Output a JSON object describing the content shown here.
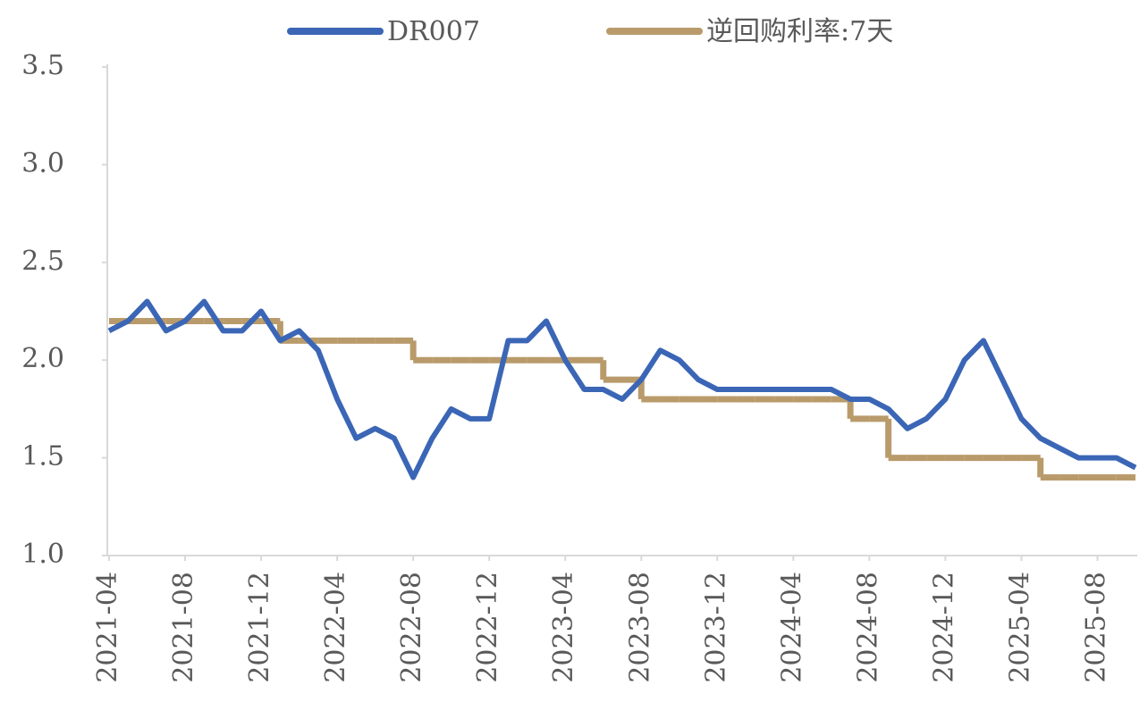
{
  "chart_data": {
    "type": "line",
    "x": [
      "2021-04",
      "2021-05",
      "2021-06",
      "2021-07",
      "2021-08",
      "2021-09",
      "2021-10",
      "2021-11",
      "2021-12",
      "2022-01",
      "2022-02",
      "2022-03",
      "2022-04",
      "2022-05",
      "2022-06",
      "2022-07",
      "2022-08",
      "2022-09",
      "2022-10",
      "2022-11",
      "2022-12",
      "2023-01",
      "2023-02",
      "2023-03",
      "2023-04",
      "2023-05",
      "2023-06",
      "2023-07",
      "2023-08",
      "2023-09",
      "2023-10",
      "2023-11",
      "2023-12",
      "2024-01",
      "2024-02",
      "2024-03",
      "2024-04",
      "2024-05",
      "2024-06",
      "2024-07",
      "2024-08",
      "2024-09",
      "2024-10",
      "2024-11",
      "2024-12",
      "2025-01",
      "2025-02",
      "2025-03",
      "2025-04",
      "2025-05",
      "2025-06",
      "2025-07",
      "2025-08",
      "2025-09",
      "2025-10"
    ],
    "series": [
      {
        "name": "DR007",
        "color": "#3b66b6",
        "values": [
          2.15,
          2.2,
          2.3,
          2.15,
          2.2,
          2.3,
          2.15,
          2.15,
          2.25,
          2.1,
          2.15,
          2.05,
          1.8,
          1.6,
          1.65,
          1.6,
          1.4,
          1.6,
          1.75,
          1.7,
          1.7,
          2.1,
          2.1,
          2.2,
          2.0,
          1.85,
          1.85,
          1.8,
          1.9,
          2.05,
          2.0,
          1.9,
          1.85,
          1.85,
          1.85,
          1.85,
          1.85,
          1.85,
          1.85,
          1.8,
          1.8,
          1.75,
          1.65,
          1.7,
          1.8,
          2.0,
          2.1,
          1.9,
          1.7,
          1.6,
          1.55,
          1.5,
          1.5,
          1.5,
          1.45
        ]
      },
      {
        "name": "逆回购利率:7天",
        "color": "#b99b6b",
        "values": [
          2.2,
          2.2,
          2.2,
          2.2,
          2.2,
          2.2,
          2.2,
          2.2,
          2.2,
          2.1,
          2.1,
          2.1,
          2.1,
          2.1,
          2.1,
          2.1,
          2.0,
          2.0,
          2.0,
          2.0,
          2.0,
          2.0,
          2.0,
          2.0,
          2.0,
          2.0,
          1.9,
          1.9,
          1.8,
          1.8,
          1.8,
          1.8,
          1.8,
          1.8,
          1.8,
          1.8,
          1.8,
          1.8,
          1.8,
          1.7,
          1.7,
          1.5,
          1.5,
          1.5,
          1.5,
          1.5,
          1.5,
          1.5,
          1.5,
          1.4,
          1.4,
          1.4,
          1.4,
          1.4,
          1.4
        ]
      }
    ],
    "xlim": [
      "2021-04",
      "2025-10"
    ],
    "xticks": [
      "2021-04",
      "2021-08",
      "2021-12",
      "2022-04",
      "2022-08",
      "2022-12",
      "2023-04",
      "2023-08",
      "2023-12",
      "2024-04",
      "2024-08",
      "2024-12",
      "2025-04",
      "2025-08"
    ],
    "ylim": [
      1,
      3.5
    ],
    "yticks": [
      {
        "value": 1,
        "label": "1.0"
      },
      1.5,
      {
        "value": 2,
        "label": "2.0"
      },
      2.5,
      {
        "value": 3,
        "label": "3.0"
      },
      3.5
    ],
    "legend": "top"
  }
}
